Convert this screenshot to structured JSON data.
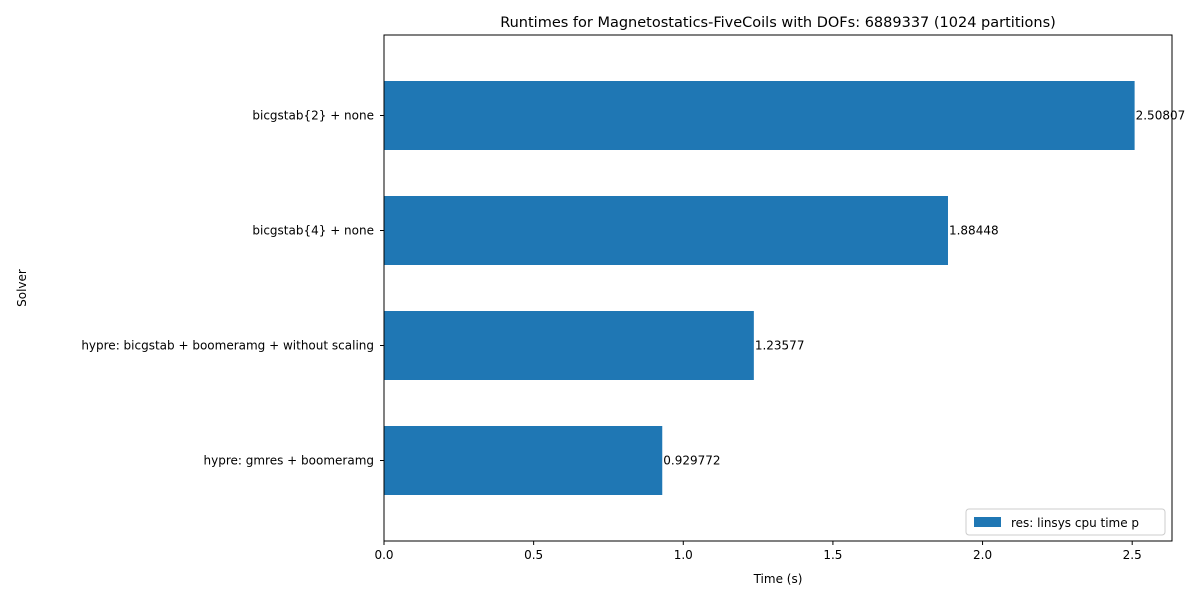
{
  "chart_data": {
    "type": "bar",
    "orientation": "horizontal",
    "title": "Runtimes for Magnetostatics-FiveCoils with DOFs: 6889337 (1024 partitions)",
    "xlabel": "Time (s)",
    "ylabel": "Solver",
    "xlim": [
      0,
      2.633
    ],
    "xticks": [
      "0.0",
      "0.5",
      "1.0",
      "1.5",
      "2.0",
      "2.5"
    ],
    "categories": [
      "bicgstab{2} + none",
      "bicgstab{4} + none",
      "hypre: bicgstab + boomeramg + without scaling",
      "hypre: gmres + boomeramg"
    ],
    "series": [
      {
        "name": "res: linsys cpu time p",
        "values": [
          2.50807,
          1.88448,
          1.23577,
          0.929772
        ],
        "labels": [
          "2.50807",
          "1.88448",
          "1.23577",
          "0.929772"
        ],
        "color": "#1f77b4"
      }
    ],
    "legend_position": "lower-right",
    "grid": false
  }
}
